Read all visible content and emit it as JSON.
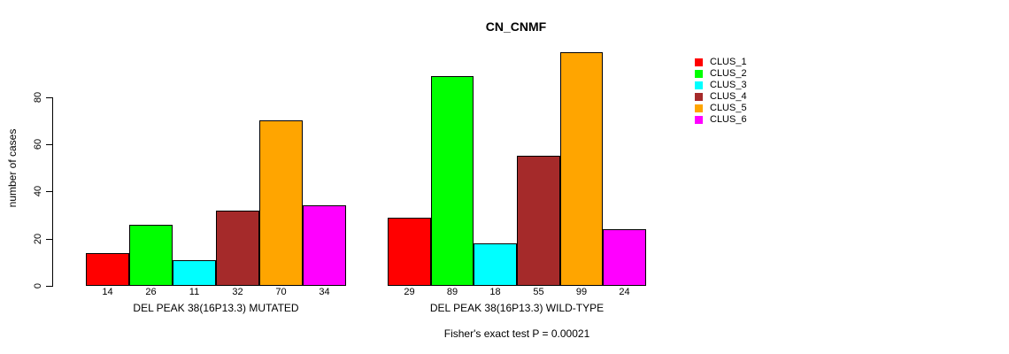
{
  "title": "CN_CNMF",
  "subtitle": "Fisher's exact test P = 0.00021",
  "ylabel": "number of cases",
  "legend": {
    "position": "right",
    "items": [
      {
        "label": "CLUS_1",
        "color": "#FF0000"
      },
      {
        "label": "CLUS_2",
        "color": "#00FF00"
      },
      {
        "label": "CLUS_3",
        "color": "#00FFFF"
      },
      {
        "label": "CLUS_4",
        "color": "#A52A2A"
      },
      {
        "label": "CLUS_5",
        "color": "#FFA500"
      },
      {
        "label": "CLUS_6",
        "color": "#FF00FF"
      }
    ]
  },
  "chart_data": {
    "type": "bar",
    "title": "CN_CNMF",
    "xlabel": "",
    "ylabel": "number of cases",
    "ylim": [
      0,
      100
    ],
    "yticks": [
      0,
      20,
      40,
      60,
      80
    ],
    "grid": false,
    "legend_position": "right",
    "categories": [
      "DEL PEAK 38(16P13.3) MUTATED",
      "DEL PEAK 38(16P13.3) WILD-TYPE"
    ],
    "series": [
      {
        "name": "CLUS_1",
        "color": "#FF0000",
        "values": [
          14,
          29
        ]
      },
      {
        "name": "CLUS_2",
        "color": "#00FF00",
        "values": [
          26,
          89
        ]
      },
      {
        "name": "CLUS_3",
        "color": "#00FFFF",
        "values": [
          11,
          18
        ]
      },
      {
        "name": "CLUS_4",
        "color": "#A52A2A",
        "values": [
          32,
          55
        ]
      },
      {
        "name": "CLUS_5",
        "color": "#FFA500",
        "values": [
          70,
          99
        ]
      },
      {
        "name": "CLUS_6",
        "color": "#FF00FF",
        "values": [
          34,
          24
        ]
      }
    ],
    "bar_value_labels_shown": true,
    "annotation": "Fisher's exact test P = 0.00021"
  }
}
